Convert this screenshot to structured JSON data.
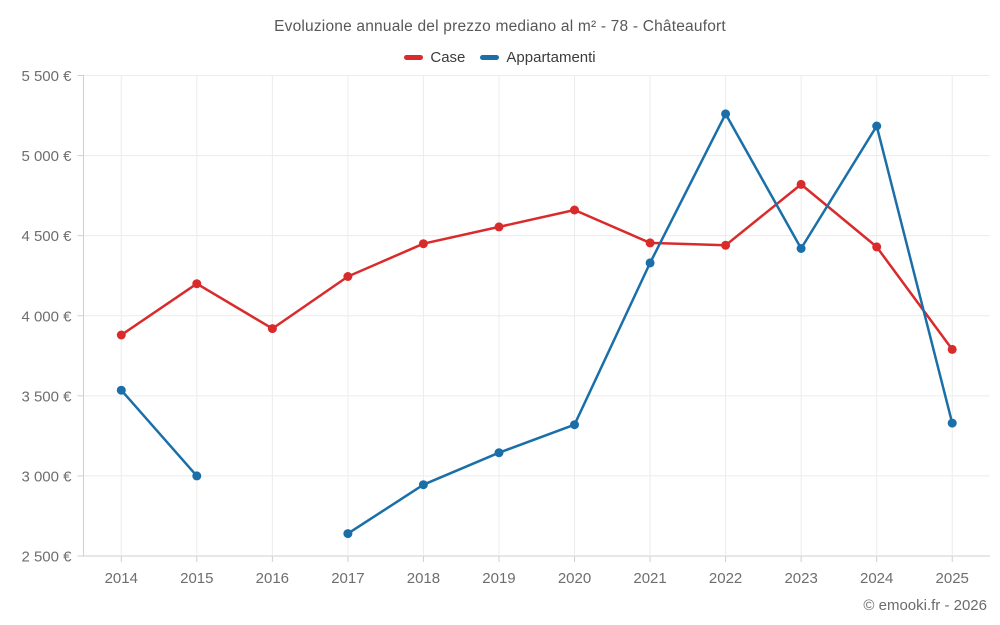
{
  "header": {
    "title": "Evoluzione annuale del prezzo mediano al m² - 78 - Châteaufort"
  },
  "footer": {
    "credit": "© emooki.fr - 2026"
  },
  "chart_data": {
    "type": "line",
    "title": "Evoluzione annuale del prezzo mediano al m² - 78 - Châteaufort",
    "x": [
      2014,
      2015,
      2016,
      2017,
      2018,
      2019,
      2020,
      2021,
      2022,
      2023,
      2024,
      2025
    ],
    "x_tick_labels": [
      "2014",
      "2015",
      "2016",
      "2017",
      "2018",
      "2019",
      "2020",
      "2021",
      "2022",
      "2023",
      "2024",
      "2025"
    ],
    "series": [
      {
        "name": "Case",
        "color": "#d92b2b",
        "values": [
          3880,
          4200,
          3920,
          4245,
          4450,
          4555,
          4660,
          4455,
          4440,
          4820,
          4430,
          3790
        ]
      },
      {
        "name": "Appartamenti",
        "color": "#1a6fa9",
        "values": [
          3535,
          3000,
          null,
          2640,
          2945,
          3145,
          3320,
          4330,
          5260,
          4420,
          5185,
          3330
        ]
      }
    ],
    "ylim": [
      2500,
      5500
    ],
    "y_ticks": [
      2500,
      3000,
      3500,
      4000,
      4500,
      5000,
      5500
    ],
    "y_tick_labels": [
      "2 500 €",
      "3 000 €",
      "3 500 €",
      "4 000 €",
      "4 500 €",
      "5 000 €",
      "5 500 €"
    ],
    "ylabel": "",
    "xlabel": "",
    "grid": true,
    "legend_position": "top",
    "marker_radius": 4.5,
    "line_width": 2.5,
    "colors": {
      "grid": "#ececec",
      "axis": "#cfcfcf",
      "tick_label": "#6e6e6e"
    }
  }
}
